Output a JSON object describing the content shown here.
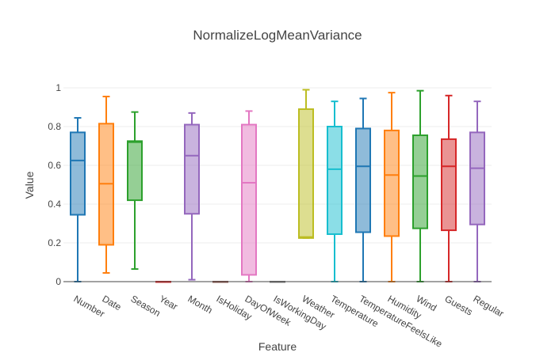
{
  "chart_data": {
    "type": "box",
    "title": "NormalizeLogMeanVariance",
    "xlabel": "Feature",
    "ylabel": "Value",
    "ylim": [
      0,
      1
    ],
    "yticks": [
      0,
      0.2,
      0.4,
      0.6,
      0.8,
      1
    ],
    "ytick_labels": [
      "0",
      "0.2",
      "0.4",
      "0.6",
      "0.8",
      "1"
    ],
    "grid": true,
    "categories": [
      "Number",
      "Date",
      "Season",
      "Year",
      "Month",
      "IsHoliday",
      "DayOfWeek",
      "IsWorkingDay",
      "Weather",
      "Temperature",
      "TemperatureFeelsLike",
      "Humidity",
      "Wind",
      "Guests",
      "Regular"
    ],
    "series": [
      {
        "category": "Number",
        "color": "#1f77b4",
        "min": 0,
        "q1": 0.345,
        "median": 0.625,
        "q3": 0.77,
        "max": 0.845
      },
      {
        "category": "Date",
        "color": "#ff7f0e",
        "min": 0.045,
        "q1": 0.19,
        "median": 0.505,
        "q3": 0.815,
        "max": 0.955
      },
      {
        "category": "Season",
        "color": "#2ca02c",
        "min": 0.065,
        "q1": 0.42,
        "median": 0.72,
        "q3": 0.725,
        "max": 0.875
      },
      {
        "category": "Year",
        "color": "#d62728",
        "min": 0,
        "q1": 0,
        "median": 0,
        "q3": 0,
        "max": 0
      },
      {
        "category": "Month",
        "color": "#9467bd",
        "min": 0.01,
        "q1": 0.35,
        "median": 0.65,
        "q3": 0.81,
        "max": 0.87
      },
      {
        "category": "IsHoliday",
        "color": "#8c564b",
        "min": 0,
        "q1": 0,
        "median": 0,
        "q3": 0,
        "max": 0
      },
      {
        "category": "DayOfWeek",
        "color": "#e377c2",
        "min": 0,
        "q1": 0.035,
        "median": 0.51,
        "q3": 0.81,
        "max": 0.88
      },
      {
        "category": "IsWorkingDay",
        "color": "#7f7f7f",
        "min": 0,
        "q1": 0,
        "median": 0,
        "q3": 0,
        "max": 0
      },
      {
        "category": "Weather",
        "color": "#bcbd22",
        "min": 0.225,
        "q1": 0.225,
        "median": 0.23,
        "q3": 0.89,
        "max": 0.99
      },
      {
        "category": "Temperature",
        "color": "#17becf",
        "min": 0,
        "q1": 0.245,
        "median": 0.58,
        "q3": 0.8,
        "max": 0.93
      },
      {
        "category": "TemperatureFeelsLike",
        "color": "#1f77b4",
        "min": 0,
        "q1": 0.255,
        "median": 0.595,
        "q3": 0.79,
        "max": 0.945
      },
      {
        "category": "Humidity",
        "color": "#ff7f0e",
        "min": 0,
        "q1": 0.235,
        "median": 0.55,
        "q3": 0.78,
        "max": 0.975
      },
      {
        "category": "Wind",
        "color": "#2ca02c",
        "min": 0,
        "q1": 0.275,
        "median": 0.545,
        "q3": 0.755,
        "max": 0.985
      },
      {
        "category": "Guests",
        "color": "#d62728",
        "min": 0,
        "q1": 0.265,
        "median": 0.595,
        "q3": 0.735,
        "max": 0.96
      },
      {
        "category": "Regular",
        "color": "#9467bd",
        "min": 0,
        "q1": 0.295,
        "median": 0.585,
        "q3": 0.77,
        "max": 0.93
      }
    ]
  }
}
